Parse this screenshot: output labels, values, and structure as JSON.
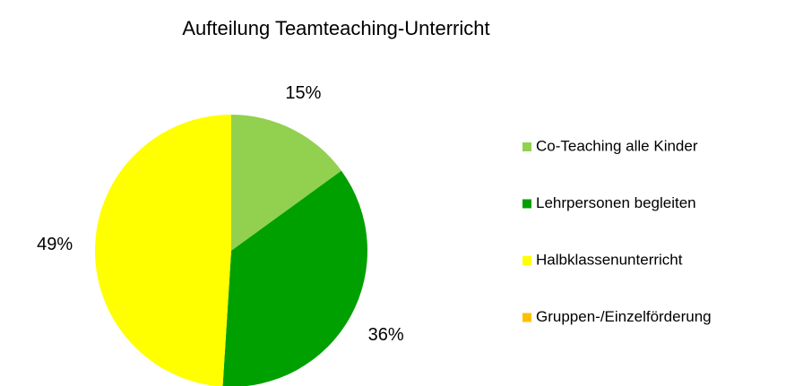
{
  "chart_data": {
    "type": "pie",
    "title": "Aufteilung Teamteaching-Unterricht",
    "categories": [
      "Co-Teaching alle Kinder",
      "Lehrpersonen begleiten",
      "Halbklassenunterricht",
      "Gruppen-/Einzelförderung"
    ],
    "values": [
      15,
      36,
      49,
      0
    ],
    "value_labels": [
      "15%",
      "36%",
      "49%",
      null
    ],
    "colors": [
      "#92d050",
      "#00a000",
      "#ffff00",
      "#ffc000"
    ],
    "legend": "right"
  }
}
